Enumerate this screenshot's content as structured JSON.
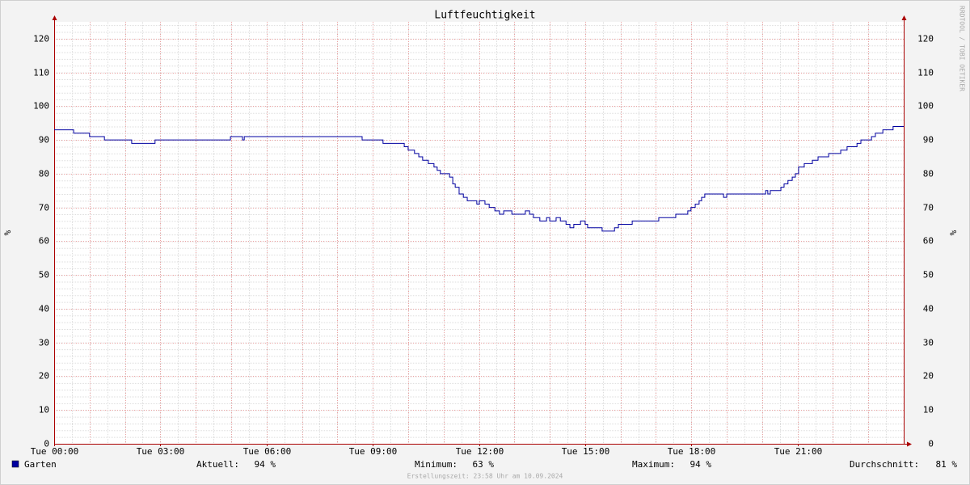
{
  "chart_data": {
    "type": "line",
    "step": true,
    "title": "Luftfeuchtigkeit",
    "y_label": "%",
    "y2_label": "%",
    "watermark": "RRDTOOL / TOBI OETIKER",
    "x": [
      0,
      0.55,
      1.0,
      1.42,
      2.19,
      2.85,
      4.98,
      5.32,
      5.37,
      8.7,
      9.29,
      9.89,
      10.0,
      10.18,
      10.3,
      10.41,
      10.57,
      10.73,
      10.82,
      10.91,
      11.17,
      11.26,
      11.33,
      11.44,
      11.56,
      11.67,
      11.94,
      12.01,
      12.17,
      12.29,
      12.45,
      12.58,
      12.7,
      12.93,
      13.31,
      13.43,
      13.54,
      13.72,
      13.91,
      14.0,
      14.18,
      14.3,
      14.46,
      14.57,
      14.68,
      14.87,
      15.0,
      15.07,
      15.48,
      15.83,
      15.94,
      16.33,
      17.08,
      17.56,
      17.9,
      17.99,
      18.11,
      18.22,
      18.29,
      18.38,
      18.91,
      19.0,
      20.1,
      20.16,
      20.23,
      20.53,
      20.62,
      20.73,
      20.85,
      20.94,
      21.03,
      21.19,
      21.42,
      21.58,
      21.88,
      22.22,
      22.4,
      22.68,
      22.79,
      23.09,
      23.2,
      23.41,
      23.7,
      24
    ],
    "series": [
      {
        "name": "Garten",
        "color": "#0000a0",
        "values": [
          93,
          92,
          91,
          90,
          89,
          90,
          91,
          90,
          91,
          90,
          89,
          88,
          87,
          86,
          85,
          84,
          83,
          82,
          81,
          80,
          79,
          77,
          76,
          74,
          73,
          72,
          71,
          72,
          71,
          70,
          69,
          68,
          69,
          68,
          69,
          68,
          67,
          66,
          67,
          66,
          67,
          66,
          65,
          64,
          65,
          66,
          65,
          64,
          63,
          64,
          65,
          66,
          67,
          68,
          69,
          70,
          71,
          72,
          73,
          74,
          73,
          74,
          75,
          74,
          75,
          76,
          77,
          78,
          79,
          80,
          82,
          83,
          84,
          85,
          86,
          87,
          88,
          89,
          90,
          91,
          92,
          93,
          94,
          94
        ]
      }
    ],
    "xlim": [
      0,
      24
    ],
    "xticks": [
      {
        "value": 0,
        "label": "Tue 00:00"
      },
      {
        "value": 3,
        "label": "Tue 03:00"
      },
      {
        "value": 6,
        "label": "Tue 06:00"
      },
      {
        "value": 9,
        "label": "Tue 09:00"
      },
      {
        "value": 12,
        "label": "Tue 12:00"
      },
      {
        "value": 15,
        "label": "Tue 15:00"
      },
      {
        "value": 18,
        "label": "Tue 18:00"
      },
      {
        "value": 21,
        "label": "Tue 21:00"
      }
    ],
    "ylim": [
      0,
      125
    ],
    "yticks": [
      0,
      10,
      20,
      30,
      40,
      50,
      60,
      70,
      80,
      90,
      100,
      110,
      120
    ],
    "grid": true,
    "grid_y_minor": 2,
    "grid_x_major": 1,
    "grid_x_minor": 0.5,
    "stats": [
      {
        "label": "Aktuell:",
        "text": "94 %"
      },
      {
        "label": "Minimum:",
        "text": "63 %"
      },
      {
        "label": "Maximum:",
        "text": "94 %"
      },
      {
        "label": "Durchschnitt:",
        "text": "81 %"
      }
    ],
    "footer": "Erstellungszeit: 23:58 Uhr am 10.09.2024"
  }
}
